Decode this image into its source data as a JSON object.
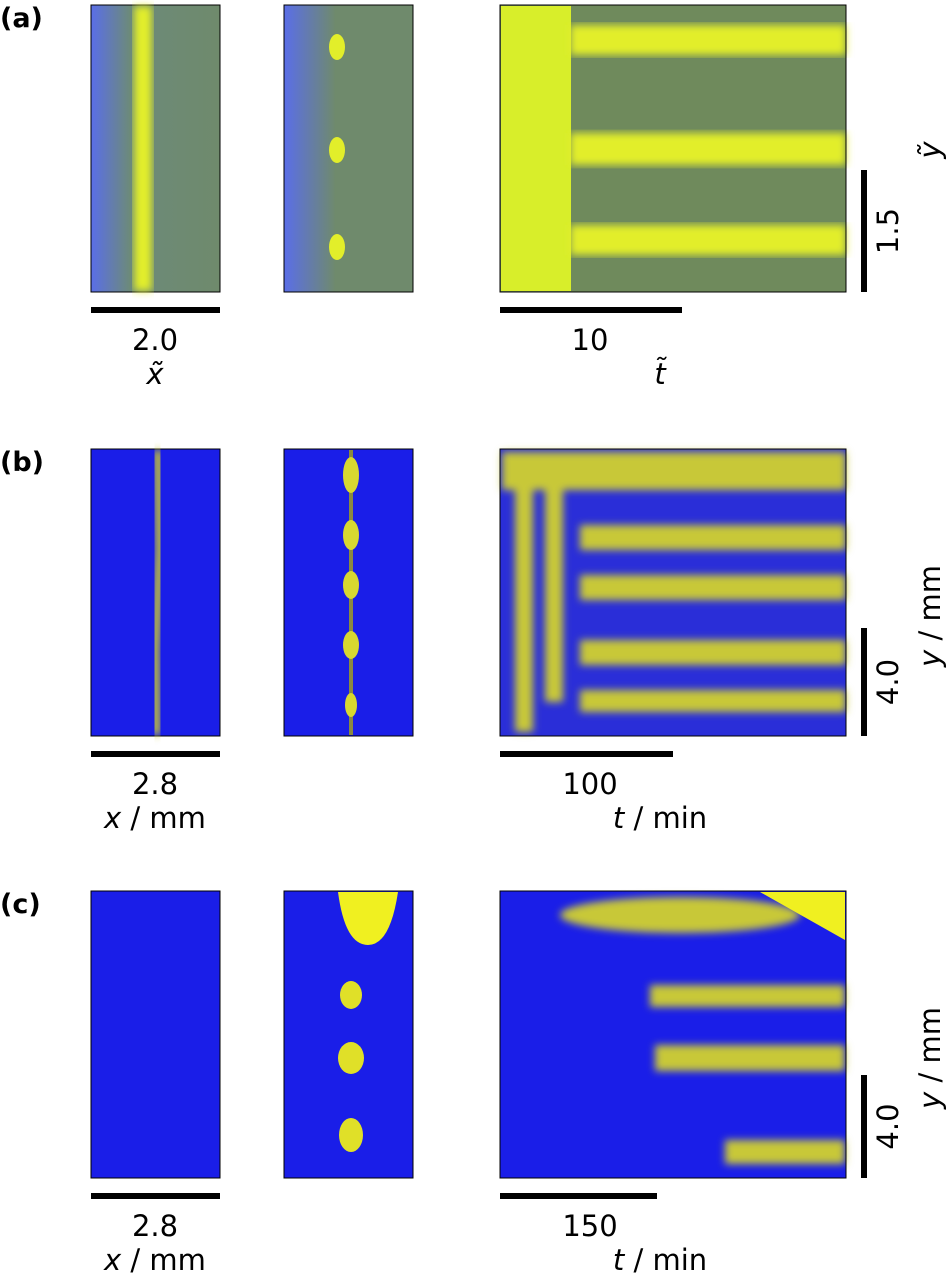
{
  "panels": [
    {
      "label": "(a)",
      "x_scale": "2.0",
      "x_var": "x̃",
      "t_scale": "10",
      "t_var": "t̃",
      "y_scale": "1.5",
      "y_var": "ỹ"
    },
    {
      "label": "(b)",
      "x_scale": "2.8",
      "x_var": "x",
      "x_unit": " / mm",
      "t_scale": "100",
      "t_var": "t",
      "t_unit": " / min",
      "y_scale": "4.0",
      "y_var": "y",
      "y_unit": " / mm"
    },
    {
      "label": "(c)",
      "x_scale": "2.8",
      "x_var": "x",
      "x_unit": " / mm",
      "t_scale": "150",
      "t_var": "t",
      "t_unit": " / min",
      "y_scale": "4.0",
      "y_var": "y",
      "y_unit": " / mm"
    }
  ]
}
